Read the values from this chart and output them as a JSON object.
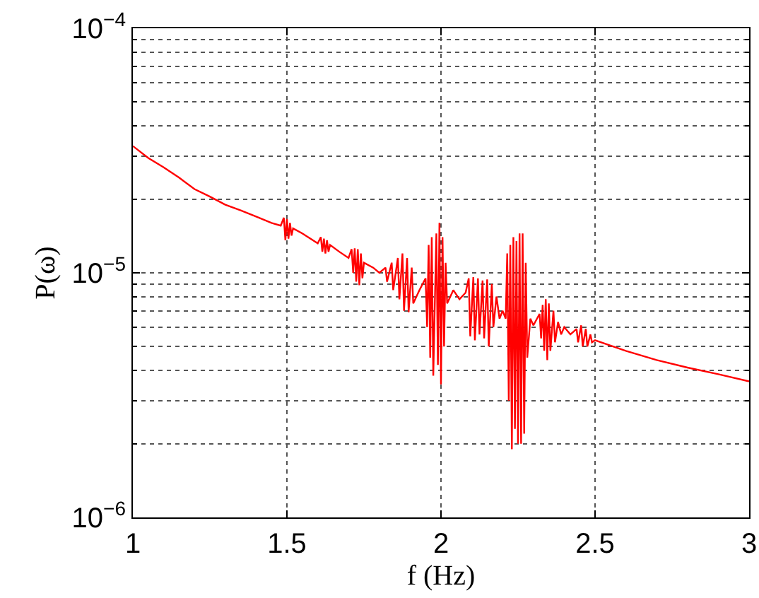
{
  "chart_data": {
    "type": "line",
    "xlabel": "f (Hz)",
    "ylabel": "P(ω)",
    "log": "y",
    "grid": true,
    "line_style": "solid",
    "xlim": [
      1,
      3
    ],
    "xticks": [
      1,
      1.5,
      2,
      2.5,
      3
    ],
    "ylim": [
      1e-06,
      0.0001
    ],
    "yticks": [
      {
        "value": 1e-06,
        "label": "10$^{−6}$"
      },
      {
        "value": 1e-05,
        "label": "10$^{−5}$"
      },
      {
        "value": 0.0001,
        "label": "10$^{−4}$"
      }
    ],
    "x": [
      1.0,
      1.05,
      1.1,
      1.15,
      1.2,
      1.25,
      1.3,
      1.35,
      1.4,
      1.45,
      1.48,
      1.49,
      1.495,
      1.5,
      1.505,
      1.51,
      1.515,
      1.52,
      1.55,
      1.6,
      1.61,
      1.615,
      1.62,
      1.625,
      1.63,
      1.635,
      1.64,
      1.67,
      1.7,
      1.71,
      1.715,
      1.72,
      1.725,
      1.73,
      1.735,
      1.74,
      1.745,
      1.75,
      1.78,
      1.8,
      1.82,
      1.825,
      1.84,
      1.845,
      1.86,
      1.865,
      1.875,
      1.88,
      1.89,
      1.895,
      1.905,
      1.91,
      1.93,
      1.95,
      1.955,
      1.96,
      1.965,
      1.97,
      1.975,
      1.985,
      1.99,
      1.995,
      2.0,
      2.005,
      2.01,
      2.015,
      2.02,
      2.04,
      2.06,
      2.08,
      2.09,
      2.095,
      2.105,
      2.11,
      2.12,
      2.125,
      2.135,
      2.14,
      2.15,
      2.155,
      2.165,
      2.17,
      2.18,
      2.19,
      2.2,
      2.21,
      2.215,
      2.22,
      2.225,
      2.23,
      2.235,
      2.24,
      2.245,
      2.25,
      2.255,
      2.26,
      2.265,
      2.27,
      2.275,
      2.28,
      2.29,
      2.3,
      2.32,
      2.325,
      2.33,
      2.335,
      2.34,
      2.345,
      2.35,
      2.355,
      2.365,
      2.37,
      2.38,
      2.39,
      2.4,
      2.42,
      2.44,
      2.445,
      2.455,
      2.46,
      2.47,
      2.475,
      2.485,
      2.49,
      2.5,
      2.6,
      2.7,
      2.8,
      2.9,
      3.0
    ],
    "series": [
      {
        "color": "#ff0000",
        "values": [
          3.3e-05,
          2.95e-05,
          2.7e-05,
          2.45e-05,
          2.2e-05,
          2.05e-05,
          1.9e-05,
          1.8e-05,
          1.7e-05,
          1.6e-05,
          1.56e-05,
          1.68e-05,
          1.36e-05,
          1.66e-05,
          1.38e-05,
          1.6e-05,
          1.42e-05,
          1.52e-05,
          1.45e-05,
          1.32e-05,
          1.4e-05,
          1.22e-05,
          1.38e-05,
          1.2e-05,
          1.36e-05,
          1.22e-05,
          1.3e-05,
          1.22e-05,
          1.15e-05,
          1.25e-05,
          1e-05,
          1.26e-05,
          9.2e-06,
          1.25e-05,
          8.9e-06,
          1.2e-05,
          9.5e-06,
          1.1e-05,
          1.05e-05,
          1e-05,
          1.05e-05,
          9.2e-06,
          1.1e-05,
          8.5e-06,
          1.15e-05,
          7.8e-06,
          1.2e-05,
          7e-06,
          1.15e-05,
          6.9e-06,
          1.05e-05,
          7.5e-06,
          8.5e-06,
          9.5e-06,
          6e-06,
          1.3e-05,
          4.5e-06,
          1.4e-05,
          3.8e-06,
          1.45e-05,
          4.2e-06,
          1.6e-05,
          3.5e-06,
          1.4e-05,
          5e-06,
          1.1e-05,
          7.5e-06,
          8.5e-06,
          7.8e-06,
          8.3e-06,
          9.5e-06,
          5.5e-06,
          9.6e-06,
          5.3e-06,
          9.5e-06,
          5.6e-06,
          9.3e-06,
          5.4e-06,
          9.4e-06,
          5e-06,
          9e-06,
          6e-06,
          8e-06,
          6.5e-06,
          7e-06,
          6.5e-06,
          1.2e-05,
          3e-06,
          1.3e-05,
          1.9e-06,
          1.4e-05,
          2.3e-06,
          1.35e-05,
          2e-06,
          1.45e-05,
          2e-06,
          1.45e-05,
          2.2e-06,
          1.1e-05,
          4.5e-06,
          6.5e-06,
          6.1e-06,
          6.8e-06,
          5.4e-06,
          7.4e-06,
          4.8e-06,
          7.8e-06,
          4.4e-06,
          7.5e-06,
          4.8e-06,
          7e-06,
          5.2e-06,
          6.3e-06,
          5.6e-06,
          6e-06,
          5.6e-06,
          5.9e-06,
          5.2e-06,
          6.1e-06,
          5e-06,
          5.9e-06,
          5e-06,
          5.6e-06,
          5.2e-06,
          5.3e-06,
          4.8e-06,
          4.4e-06,
          4.1e-06,
          3.85e-06,
          3.6e-06
        ]
      }
    ]
  }
}
